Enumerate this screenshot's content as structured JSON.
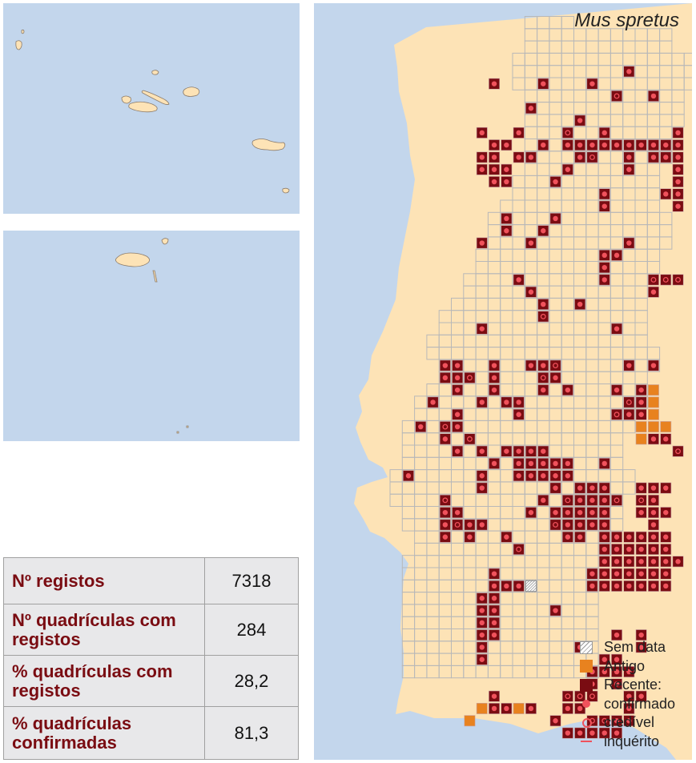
{
  "species": "Mus spretus",
  "stats": [
    {
      "label": "Nº registos",
      "value": "7318"
    },
    {
      "label": "Nº quadrículas com registos",
      "value": "284"
    },
    {
      "label": "% quadrículas com registos",
      "value": "28,2"
    },
    {
      "label": "% quadrículas confirmadas",
      "value": "81,3"
    }
  ],
  "legend": {
    "sem_data": "Sem data",
    "antigo": "Antigo",
    "recente": "Recente:",
    "confirmado": "confirmado",
    "credivel": "credível",
    "inquerito": "inquérito"
  },
  "colors": {
    "sea": "#c3d6ec",
    "land": "#fde3b6",
    "grid": "#b8b8b8",
    "recente": "#7a0c12",
    "antigo": "#e8821f",
    "marker": "#f0525c",
    "label": "#7a0c12"
  },
  "insets": [
    "Açores",
    "Madeira"
  ]
}
